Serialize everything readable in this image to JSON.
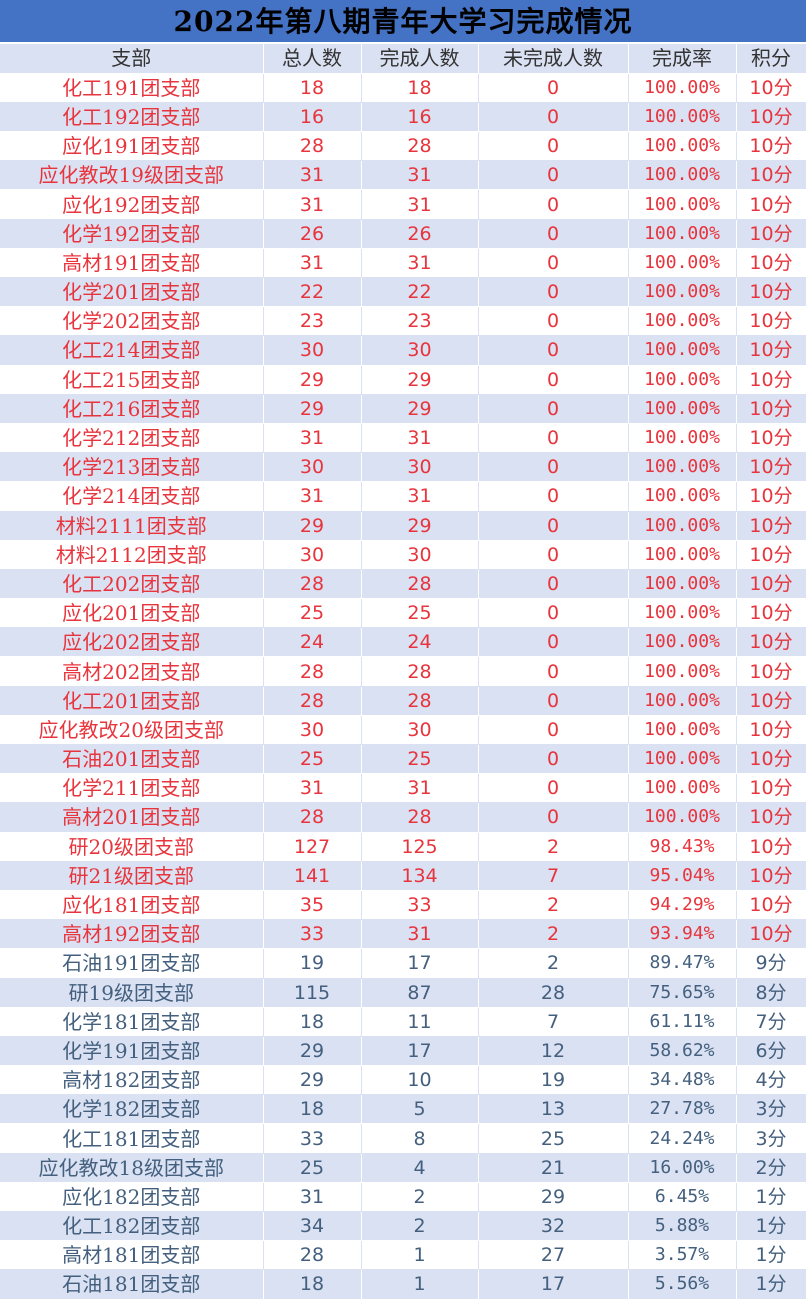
{
  "title": "2022年第八期青年大学习完成情况",
  "colors": {
    "header_bg": "#4472c4",
    "stripe": "#d9e1f2",
    "complete_text": "#e8343c",
    "incomplete_text": "#44607e"
  },
  "columns": [
    "支部",
    "总人数",
    "完成人数",
    "未完成人数",
    "完成率",
    "积分"
  ],
  "rows": [
    [
      "化工191团支部",
      "18",
      "18",
      "0",
      "100.00%",
      "10分"
    ],
    [
      "化工192团支部",
      "16",
      "16",
      "0",
      "100.00%",
      "10分"
    ],
    [
      "应化191团支部",
      "28",
      "28",
      "0",
      "100.00%",
      "10分"
    ],
    [
      "应化教改19级团支部",
      "31",
      "31",
      "0",
      "100.00%",
      "10分"
    ],
    [
      "应化192团支部",
      "31",
      "31",
      "0",
      "100.00%",
      "10分"
    ],
    [
      "化学192团支部",
      "26",
      "26",
      "0",
      "100.00%",
      "10分"
    ],
    [
      "高材191团支部",
      "31",
      "31",
      "0",
      "100.00%",
      "10分"
    ],
    [
      "化学201团支部",
      "22",
      "22",
      "0",
      "100.00%",
      "10分"
    ],
    [
      "化学202团支部",
      "23",
      "23",
      "0",
      "100.00%",
      "10分"
    ],
    [
      "化工214团支部",
      "30",
      "30",
      "0",
      "100.00%",
      "10分"
    ],
    [
      "化工215团支部",
      "29",
      "29",
      "0",
      "100.00%",
      "10分"
    ],
    [
      "化工216团支部",
      "29",
      "29",
      "0",
      "100.00%",
      "10分"
    ],
    [
      "化学212团支部",
      "31",
      "31",
      "0",
      "100.00%",
      "10分"
    ],
    [
      "化学213团支部",
      "30",
      "30",
      "0",
      "100.00%",
      "10分"
    ],
    [
      "化学214团支部",
      "31",
      "31",
      "0",
      "100.00%",
      "10分"
    ],
    [
      "材料2111团支部",
      "29",
      "29",
      "0",
      "100.00%",
      "10分"
    ],
    [
      "材料2112团支部",
      "30",
      "30",
      "0",
      "100.00%",
      "10分"
    ],
    [
      "化工202团支部",
      "28",
      "28",
      "0",
      "100.00%",
      "10分"
    ],
    [
      "应化201团支部",
      "25",
      "25",
      "0",
      "100.00%",
      "10分"
    ],
    [
      "应化202团支部",
      "24",
      "24",
      "0",
      "100.00%",
      "10分"
    ],
    [
      "高材202团支部",
      "28",
      "28",
      "0",
      "100.00%",
      "10分"
    ],
    [
      "化工201团支部",
      "28",
      "28",
      "0",
      "100.00%",
      "10分"
    ],
    [
      "应化教改20级团支部",
      "30",
      "30",
      "0",
      "100.00%",
      "10分"
    ],
    [
      "石油201团支部",
      "25",
      "25",
      "0",
      "100.00%",
      "10分"
    ],
    [
      "化学211团支部",
      "31",
      "31",
      "0",
      "100.00%",
      "10分"
    ],
    [
      "高材201团支部",
      "28",
      "28",
      "0",
      "100.00%",
      "10分"
    ],
    [
      "研20级团支部",
      "127",
      "125",
      "2",
      "98.43%",
      "10分"
    ],
    [
      "研21级团支部",
      "141",
      "134",
      "7",
      "95.04%",
      "10分"
    ],
    [
      "应化181团支部",
      "35",
      "33",
      "2",
      "94.29%",
      "10分"
    ],
    [
      "高材192团支部",
      "33",
      "31",
      "2",
      "93.94%",
      "10分"
    ],
    [
      "石油191团支部",
      "19",
      "17",
      "2",
      "89.47%",
      "9分"
    ],
    [
      "研19级团支部",
      "115",
      "87",
      "28",
      "75.65%",
      "8分"
    ],
    [
      "化学181团支部",
      "18",
      "11",
      "7",
      "61.11%",
      "7分"
    ],
    [
      "化学191团支部",
      "29",
      "17",
      "12",
      "58.62%",
      "6分"
    ],
    [
      "高材182团支部",
      "29",
      "10",
      "19",
      "34.48%",
      "4分"
    ],
    [
      "化学182团支部",
      "18",
      "5",
      "13",
      "27.78%",
      "3分"
    ],
    [
      "化工181团支部",
      "33",
      "8",
      "25",
      "24.24%",
      "3分"
    ],
    [
      "应化教改18级团支部",
      "25",
      "4",
      "21",
      "16.00%",
      "2分"
    ],
    [
      "应化182团支部",
      "31",
      "2",
      "29",
      "6.45%",
      "1分"
    ],
    [
      "化工182团支部",
      "34",
      "2",
      "32",
      "5.88%",
      "1分"
    ],
    [
      "高材181团支部",
      "28",
      "1",
      "27",
      "3.57%",
      "1分"
    ],
    [
      "石油181团支部",
      "18",
      "1",
      "17",
      "5.56%",
      "1分"
    ]
  ]
}
